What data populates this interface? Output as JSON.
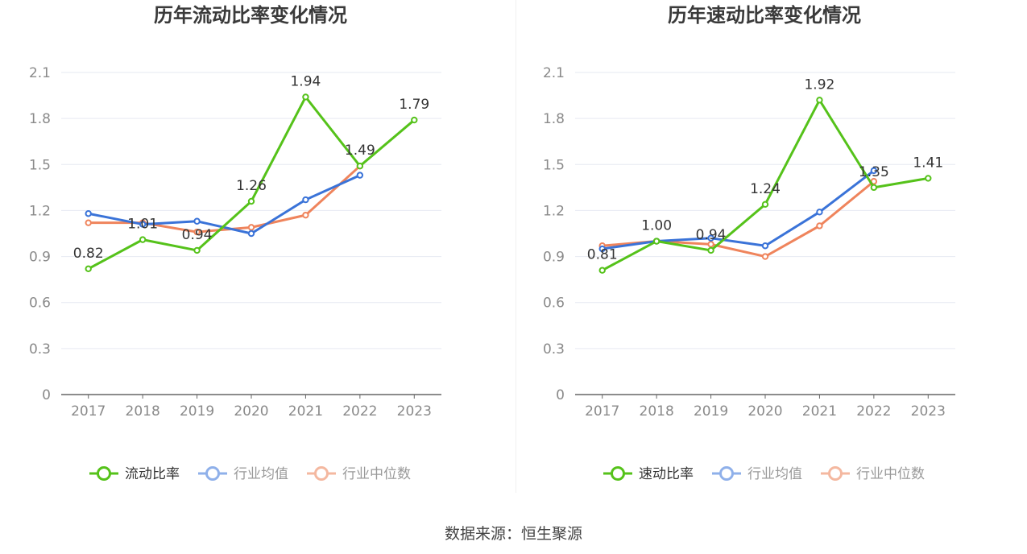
{
  "colors": {
    "primary": "#55c21a",
    "avg": "#3a73d8",
    "median": "#ef845c",
    "grid": "#e6e9f2",
    "axis": "#666666"
  },
  "source": "数据来源：恒生聚源",
  "chart_data": [
    {
      "type": "line",
      "title": "历年流动比率变化情况",
      "categories": [
        "2017",
        "2018",
        "2019",
        "2020",
        "2021",
        "2022",
        "2023"
      ],
      "ylim": [
        0,
        2.1
      ],
      "yticks": [
        "0",
        "0.3",
        "0.6",
        "0.9",
        "1.2",
        "1.5",
        "1.8",
        "2.1"
      ],
      "grid": true,
      "legend_position": "bottom",
      "series": [
        {
          "name": "流动比率",
          "values": [
            0.82,
            1.01,
            0.94,
            1.26,
            1.94,
            1.49,
            1.79
          ],
          "labels": [
            "0.82",
            "1.01",
            "0.94",
            "1.26",
            "1.94",
            "1.49",
            "1.79"
          ]
        },
        {
          "name": "行业均值",
          "values": [
            1.18,
            1.11,
            1.13,
            1.05,
            1.27,
            1.43,
            null
          ]
        },
        {
          "name": "行业中位数",
          "values": [
            1.12,
            1.12,
            1.06,
            1.09,
            1.17,
            1.49,
            null
          ]
        }
      ]
    },
    {
      "type": "line",
      "title": "历年速动比率变化情况",
      "categories": [
        "2017",
        "2018",
        "2019",
        "2020",
        "2021",
        "2022",
        "2023"
      ],
      "ylim": [
        0,
        2.1
      ],
      "yticks": [
        "0",
        "0.3",
        "0.6",
        "0.9",
        "1.2",
        "1.5",
        "1.8",
        "2.1"
      ],
      "grid": true,
      "legend_position": "bottom",
      "series": [
        {
          "name": "速动比率",
          "values": [
            0.81,
            1.0,
            0.94,
            1.24,
            1.92,
            1.35,
            1.41
          ],
          "labels": [
            "0.81",
            "1.00",
            "0.94",
            "1.24",
            "1.92",
            "1.35",
            "1.41"
          ]
        },
        {
          "name": "行业均值",
          "values": [
            0.95,
            1.0,
            1.02,
            0.97,
            1.19,
            1.46,
            null
          ]
        },
        {
          "name": "行业中位数",
          "values": [
            0.97,
            1.0,
            0.98,
            0.9,
            1.1,
            1.39,
            null
          ]
        }
      ]
    }
  ]
}
